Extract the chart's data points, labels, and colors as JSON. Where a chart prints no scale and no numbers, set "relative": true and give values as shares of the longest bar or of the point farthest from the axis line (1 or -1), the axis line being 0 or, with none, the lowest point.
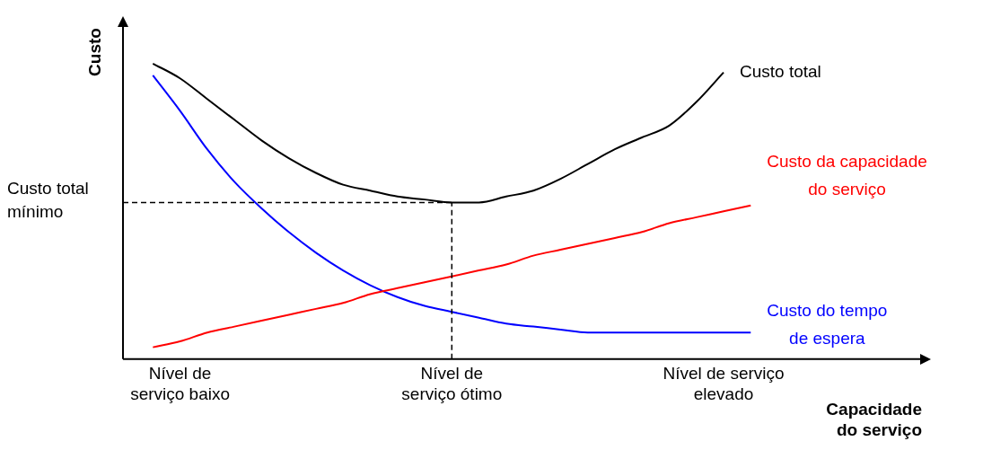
{
  "chart_data": {
    "type": "line",
    "relative": true,
    "legend": false,
    "grid": false,
    "xlabel": "Capacidade do serviço",
    "ylabel": "Custo",
    "categories": [
      null,
      "Nível de\nserviço baixo",
      null,
      null,
      null,
      null,
      null,
      null,
      null,
      null,
      null,
      "Nível de\nserviço ótimo",
      null,
      null,
      null,
      null,
      null,
      null,
      null,
      null,
      null,
      "Nível de serviço\nelevado",
      null
    ],
    "series": [
      {
        "name": "Custo total",
        "color": "#000000",
        "values": [
          1.0,
          0.95,
          0.88,
          0.81,
          0.74,
          0.68,
          0.63,
          0.59,
          0.57,
          0.55,
          0.54,
          0.53,
          0.53,
          0.55,
          0.57,
          0.61,
          0.66,
          0.71,
          0.75,
          0.79,
          0.87,
          0.97,
          null
        ]
      },
      {
        "name": "Custo da capacidade\ndo serviço",
        "color": "#ff0000",
        "values": [
          0.04,
          0.06,
          0.09,
          0.11,
          0.13,
          0.15,
          0.17,
          0.19,
          0.22,
          0.24,
          0.26,
          0.28,
          0.3,
          0.32,
          0.35,
          0.37,
          0.39,
          0.41,
          0.43,
          0.46,
          0.48,
          0.5,
          0.52
        ]
      },
      {
        "name": "Custo do tempo\nde espera",
        "color": "#0000ff",
        "values": [
          0.96,
          0.84,
          0.71,
          0.6,
          0.51,
          0.43,
          0.36,
          0.3,
          0.25,
          0.21,
          0.18,
          0.16,
          0.14,
          0.12,
          0.11,
          0.1,
          0.09,
          0.09,
          0.09,
          0.09,
          0.09,
          0.09,
          0.09
        ]
      }
    ],
    "ref_lines": [
      {
        "axis": "y",
        "value": 0.53,
        "label": "Custo total\nmínimo",
        "line_style": "dashed",
        "color": "#000000"
      },
      {
        "axis": "x",
        "value": "Nível de\nserviço ótimo",
        "line_style": "dashed",
        "color": "#000000"
      }
    ]
  }
}
